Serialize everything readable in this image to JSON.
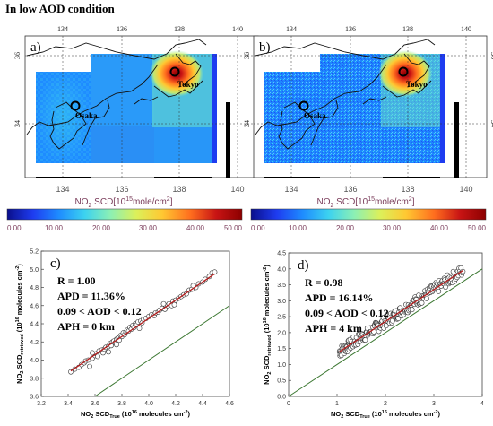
{
  "heading": "In low AOD condition",
  "colors": {
    "cb": [
      "#0a0f8c",
      "#1e3cf0",
      "#1e8cff",
      "#3cd2f0",
      "#8cf0b4",
      "#dcf05a",
      "#ffc832",
      "#ff6e1e",
      "#c81414",
      "#8c0000"
    ],
    "fit_line": "#b41e1e",
    "one_to_one": "#3c7832",
    "marker_edge": "#333333",
    "marker_fill": "#ffffff"
  },
  "maps": [
    {
      "panel": "a)",
      "top_ticks": [
        "134",
        "136",
        "138",
        "140"
      ],
      "bottom_ticks": [
        "134",
        "136",
        "138",
        "140"
      ],
      "left_ticks": [
        "36",
        "34"
      ],
      "right_ticks": [
        "36",
        "34"
      ],
      "cities": [
        "Tokyo",
        "Osaka"
      ],
      "colorbar_title": "NO",
      "colorbar_sub": "2",
      "colorbar_units": " SCD[10",
      "colorbar_sup": "15",
      "colorbar_units2": "mole/cm",
      "colorbar_sup2": "2",
      "colorbar_end": "]",
      "colorbar_ticks": [
        "0.00",
        "10.00",
        "20.00",
        "30.00",
        "40.00",
        "50.00"
      ]
    },
    {
      "panel": "b)",
      "top_ticks": [
        "134",
        "136",
        "138",
        "140"
      ],
      "bottom_ticks": [
        "134",
        "136",
        "138",
        "140"
      ],
      "left_ticks": [
        "36",
        "34"
      ],
      "right_ticks": [
        "36",
        "34"
      ],
      "cities": [
        "Tokyo",
        "Osaka"
      ],
      "colorbar_title": "NO",
      "colorbar_sub": "2",
      "colorbar_units": " SCD[10",
      "colorbar_sup": "15",
      "colorbar_units2": "mole/cm",
      "colorbar_sup2": "2",
      "colorbar_end": "]",
      "colorbar_ticks": [
        "0.00",
        "10.00",
        "20.00",
        "30.00",
        "40.00",
        "50.00"
      ]
    }
  ],
  "chart_data": [
    {
      "type": "scatter",
      "panel": "c)",
      "stats": [
        "R = 1.00",
        "APD = 11.36%",
        "0.09 < AOD < 0.12",
        "APH = 0 km"
      ],
      "xlabel": "NO2 SCDTrue (10^16 molecules cm^-2)",
      "xlabel_parts": [
        "NO",
        "2",
        " SCD",
        "True",
        " (10",
        "16",
        " molecules cm",
        "-2",
        ")"
      ],
      "ylabel_parts": [
        "NO",
        "2",
        " SCD",
        "retrieved",
        " (10",
        "16",
        " molecules cm",
        "-2",
        ")"
      ],
      "xlim": [
        3.2,
        4.6
      ],
      "ylim": [
        3.6,
        5.2
      ],
      "xticks": [
        "3.2",
        "3.4",
        "3.6",
        "3.8",
        "4.0",
        "4.2",
        "4.4",
        "4.6"
      ],
      "yticks": [
        "3.6",
        "3.8",
        "4.0",
        "4.2",
        "4.4",
        "4.6",
        "4.8",
        "5.0",
        "5.2"
      ],
      "fit": {
        "slope": 1.0,
        "intercept": 0.46
      },
      "one_to_one": true,
      "points": [
        [
          3.42,
          3.87
        ],
        [
          3.45,
          3.9
        ],
        [
          3.48,
          3.92
        ],
        [
          3.5,
          3.95
        ],
        [
          3.52,
          3.97
        ],
        [
          3.53,
          3.99
        ],
        [
          3.55,
          4.0
        ],
        [
          3.56,
          3.93
        ],
        [
          3.58,
          4.02
        ],
        [
          3.6,
          4.05
        ],
        [
          3.61,
          4.07
        ],
        [
          3.62,
          4.04
        ],
        [
          3.63,
          4.1
        ],
        [
          3.65,
          4.11
        ],
        [
          3.66,
          4.08
        ],
        [
          3.67,
          4.12
        ],
        [
          3.68,
          4.14
        ],
        [
          3.7,
          4.15
        ],
        [
          3.71,
          4.18
        ],
        [
          3.72,
          4.16
        ],
        [
          3.73,
          4.2
        ],
        [
          3.74,
          4.21
        ],
        [
          3.75,
          4.19
        ],
        [
          3.76,
          4.23
        ],
        [
          3.77,
          4.24
        ],
        [
          3.78,
          4.22
        ],
        [
          3.79,
          4.27
        ],
        [
          3.8,
          4.26
        ],
        [
          3.81,
          4.3
        ],
        [
          3.82,
          4.28
        ],
        [
          3.83,
          4.31
        ],
        [
          3.84,
          4.33
        ],
        [
          3.85,
          4.32
        ],
        [
          3.86,
          4.36
        ],
        [
          3.87,
          4.34
        ],
        [
          3.88,
          4.38
        ],
        [
          3.89,
          4.36
        ],
        [
          3.9,
          4.4
        ],
        [
          3.91,
          4.39
        ],
        [
          3.92,
          4.42
        ],
        [
          3.94,
          4.43
        ],
        [
          3.95,
          4.41
        ],
        [
          3.96,
          4.45
        ],
        [
          3.98,
          4.46
        ],
        [
          4.0,
          4.48
        ],
        [
          4.02,
          4.5
        ],
        [
          4.04,
          4.49
        ],
        [
          4.05,
          4.52
        ],
        [
          4.07,
          4.53
        ],
        [
          4.08,
          4.55
        ],
        [
          4.1,
          4.57
        ],
        [
          4.12,
          4.56
        ],
        [
          4.14,
          4.6
        ],
        [
          4.15,
          4.62
        ],
        [
          4.17,
          4.6
        ],
        [
          4.18,
          4.65
        ],
        [
          4.2,
          4.66
        ],
        [
          4.22,
          4.68
        ],
        [
          4.24,
          4.7
        ],
        [
          4.26,
          4.72
        ],
        [
          4.28,
          4.73
        ],
        [
          4.3,
          4.77
        ],
        [
          4.32,
          4.78
        ],
        [
          4.35,
          4.8
        ],
        [
          4.37,
          4.84
        ],
        [
          4.4,
          4.86
        ],
        [
          4.42,
          4.89
        ],
        [
          4.45,
          4.92
        ],
        [
          4.47,
          4.96
        ],
        [
          4.49,
          4.97
        ],
        [
          3.58,
          4.08
        ],
        [
          3.7,
          4.09
        ],
        [
          3.76,
          4.17
        ],
        [
          3.93,
          4.35
        ],
        [
          4.11,
          4.62
        ],
        [
          4.19,
          4.61
        ],
        [
          4.33,
          4.82
        ]
      ]
    },
    {
      "type": "scatter",
      "panel": "d)",
      "stats": [
        "R = 0.98",
        "APD = 16.14%",
        "0.09 < AOD < 0.12",
        "APH = 4 km"
      ],
      "xlabel": "NO2 SCDTrue (10^16 molecules cm^-2)",
      "xlabel_parts": [
        "NO",
        "2",
        " SCD",
        "True",
        " (10",
        "16",
        " molecules cm",
        "-2",
        ")"
      ],
      "ylabel_parts": [
        "NO",
        "2",
        " SCD",
        "retrieved",
        " (10",
        "16",
        " molecules cm",
        "-2",
        ")"
      ],
      "xlim": [
        0,
        4
      ],
      "ylim": [
        0,
        4.5
      ],
      "xticks": [
        "0",
        "1",
        "2",
        "3",
        "4"
      ],
      "yticks": [
        "0.0",
        "0.5",
        "1.0",
        "1.5",
        "2.0",
        "2.5",
        "3.0",
        "3.5",
        "4.0",
        "4.5"
      ],
      "fit": {
        "slope": 1.0,
        "intercept": 0.35
      },
      "one_to_one": true,
      "points_generated": {
        "xmin": 1.05,
        "xmax": 3.6,
        "count": 220,
        "slope": 1.0,
        "intercept": 0.35,
        "spread": 0.18
      }
    }
  ]
}
